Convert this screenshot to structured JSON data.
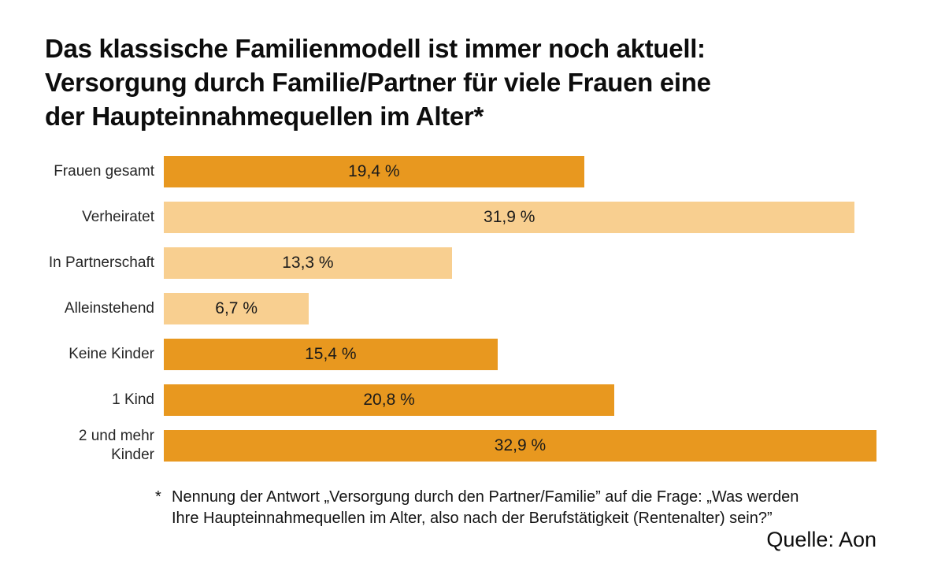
{
  "title": {
    "lines": [
      "Das klassische Familienmodell ist immer noch aktuell:",
      "Versorgung durch Familie/Partner für viele Frauen eine",
      "der Haupteinnahmequellen im Alter*"
    ]
  },
  "chart_data": {
    "type": "bar",
    "orientation": "horizontal",
    "title": "Das klassische Familienmodell ist immer noch aktuell: Versorgung durch Familie/Partner für viele Frauen eine der Haupteinnahmequellen im Alter*",
    "categories": [
      "Frauen gesamt",
      "Verheiratet",
      "In Partnerschaft",
      "Alleinstehend",
      "Keine Kinder",
      "1 Kind",
      "2 und mehr Kinder"
    ],
    "values": [
      19.4,
      31.9,
      13.3,
      6.7,
      15.4,
      20.8,
      32.9
    ],
    "value_labels": [
      "19,4 %",
      "31,9 %",
      "13,3 %",
      "6,7 %",
      "15,4 %",
      "20,8 %",
      "32,9 %"
    ],
    "bar_color_roles": [
      "dark",
      "light",
      "light",
      "light",
      "dark",
      "dark",
      "dark"
    ],
    "colors": {
      "dark": "#E8981F",
      "light": "#F8CF90"
    },
    "xlim": [
      0,
      32.9
    ],
    "grid": false,
    "value_label_position": "center-inside"
  },
  "footnote": {
    "marker": "*",
    "lines": [
      "Nennung der Antwort „Versorgung durch den Partner/Familie” auf die Frage: „Was werden",
      "Ihre Haupteinnahmequellen im Alter, also nach der Berufstätigkeit (Rentenalter) sein?”"
    ]
  },
  "source": {
    "label": "Quelle: Aon"
  }
}
